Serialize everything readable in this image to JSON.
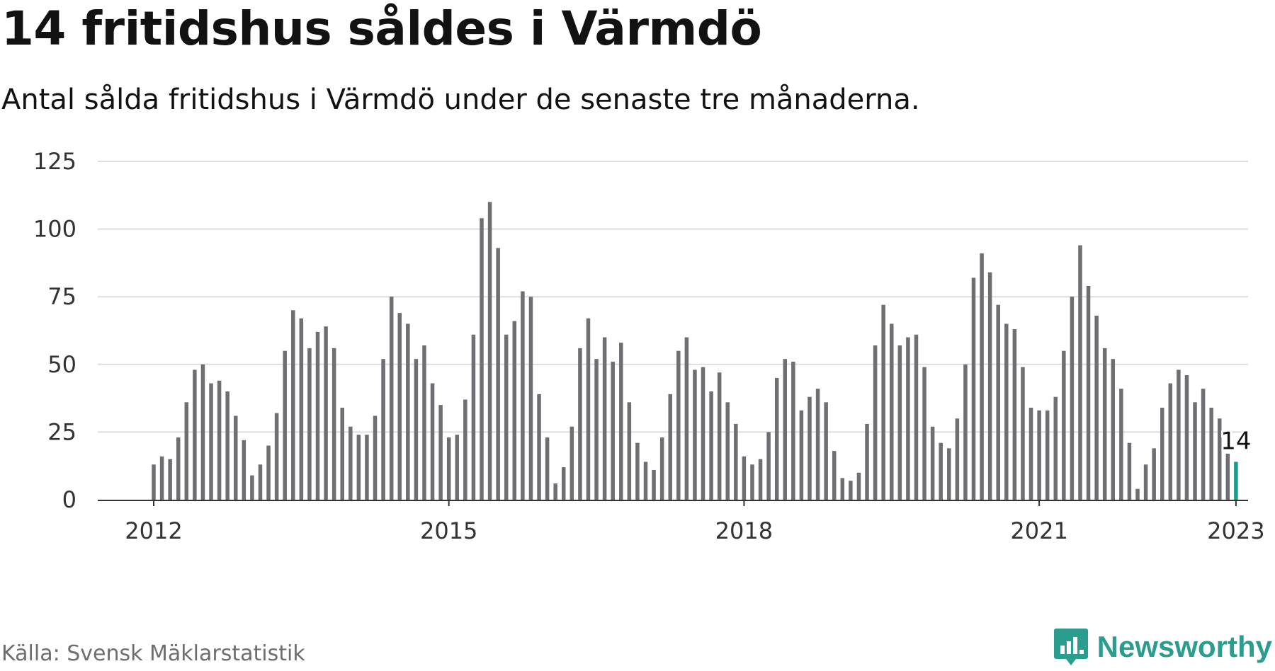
{
  "title": "14 fritidshus såldes i Värmdö",
  "subtitle": "Antal sålda fritidshus i Värmdö under de senaste tre månaderna.",
  "source": "Källa: Svensk Mäklarstatistik",
  "brand": "Newsworthy",
  "brand_icon": "newsworthy-logo-icon",
  "colors": {
    "bar": "#6e6e73",
    "highlight": "#1a9c8c",
    "grid": "#dddddd",
    "axis": "#333333",
    "brand": "#2a9d8f"
  },
  "chart_data": {
    "type": "bar",
    "x_start": "2012-01",
    "x_end": "2023-01",
    "frequency": "monthly",
    "values": [
      13,
      16,
      15,
      23,
      36,
      48,
      50,
      43,
      44,
      40,
      31,
      22,
      9,
      13,
      20,
      32,
      55,
      70,
      67,
      56,
      62,
      64,
      56,
      34,
      27,
      24,
      24,
      31,
      52,
      75,
      69,
      65,
      52,
      57,
      43,
      35,
      23,
      24,
      37,
      61,
      104,
      110,
      93,
      61,
      66,
      77,
      75,
      39,
      23,
      6,
      12,
      27,
      56,
      67,
      52,
      60,
      51,
      58,
      36,
      21,
      14,
      11,
      23,
      39,
      55,
      60,
      48,
      49,
      40,
      47,
      36,
      28,
      16,
      13,
      15,
      25,
      45,
      52,
      51,
      33,
      38,
      41,
      36,
      18,
      8,
      7,
      10,
      28,
      57,
      72,
      65,
      57,
      60,
      61,
      49,
      27,
      21,
      19,
      30,
      50,
      82,
      91,
      84,
      72,
      65,
      63,
      49,
      34,
      33,
      33,
      38,
      55,
      75,
      94,
      79,
      68,
      56,
      52,
      41,
      21,
      4,
      13,
      19,
      34,
      43,
      48,
      46,
      36,
      41,
      34,
      30,
      17,
      14
    ],
    "highlight_last": true,
    "highlight_label": "14",
    "xticks": [
      "2012",
      "2015",
      "2018",
      "2021",
      "2023"
    ],
    "yticks": [
      "0",
      "25",
      "50",
      "75",
      "100",
      "125"
    ],
    "ylim": [
      0,
      125
    ],
    "grid": true
  }
}
